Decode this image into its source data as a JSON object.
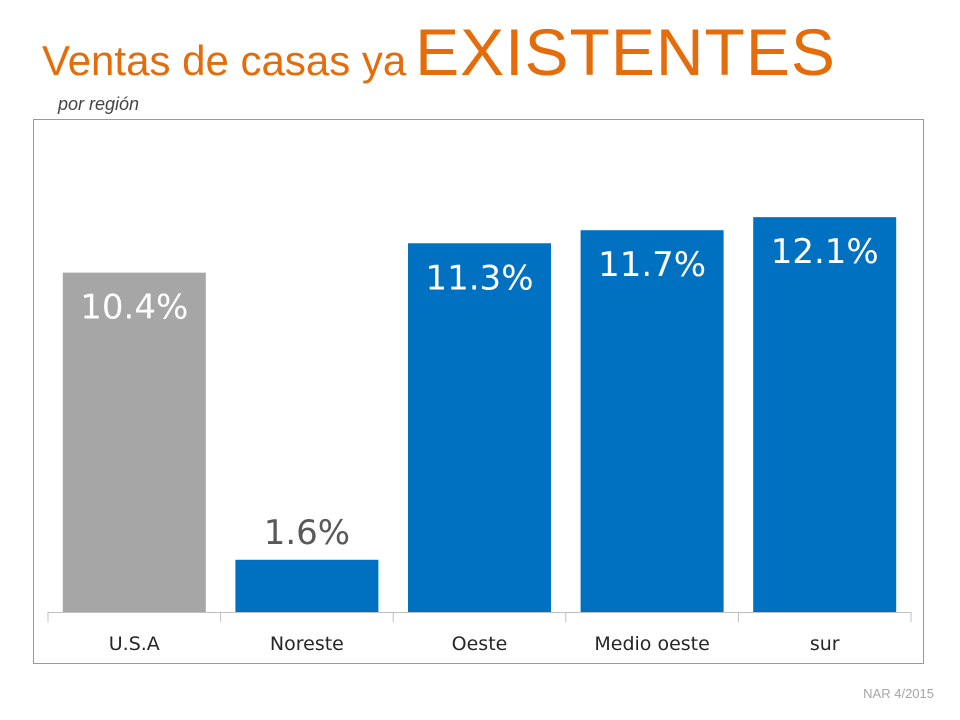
{
  "title": {
    "prefix": "Ventas de casas ya",
    "emphasis": "EXISTENTES"
  },
  "subtitle": "por región",
  "source": "NAR 4/2015",
  "colors": {
    "title": "#e46c0a",
    "highlight_bar": "#a6a6a6",
    "bar": "#0070c0",
    "axis": "#bfbfbf"
  },
  "chart_data": {
    "type": "bar",
    "title": "Ventas de casas ya EXISTENTES",
    "subtitle": "por región",
    "categories": [
      "U.S.A",
      "Noreste",
      "Oeste",
      "Medio oeste",
      "sur"
    ],
    "values": [
      10.4,
      1.6,
      11.3,
      11.7,
      12.1
    ],
    "labels": [
      "10.4%",
      "1.6%",
      "11.3%",
      "11.7%",
      "12.1%"
    ],
    "unit": "%",
    "highlight_category": "U.S.A",
    "ylim": [
      0,
      13.3
    ],
    "grid": false,
    "legend": "none",
    "xlabel": "",
    "ylabel": ""
  }
}
